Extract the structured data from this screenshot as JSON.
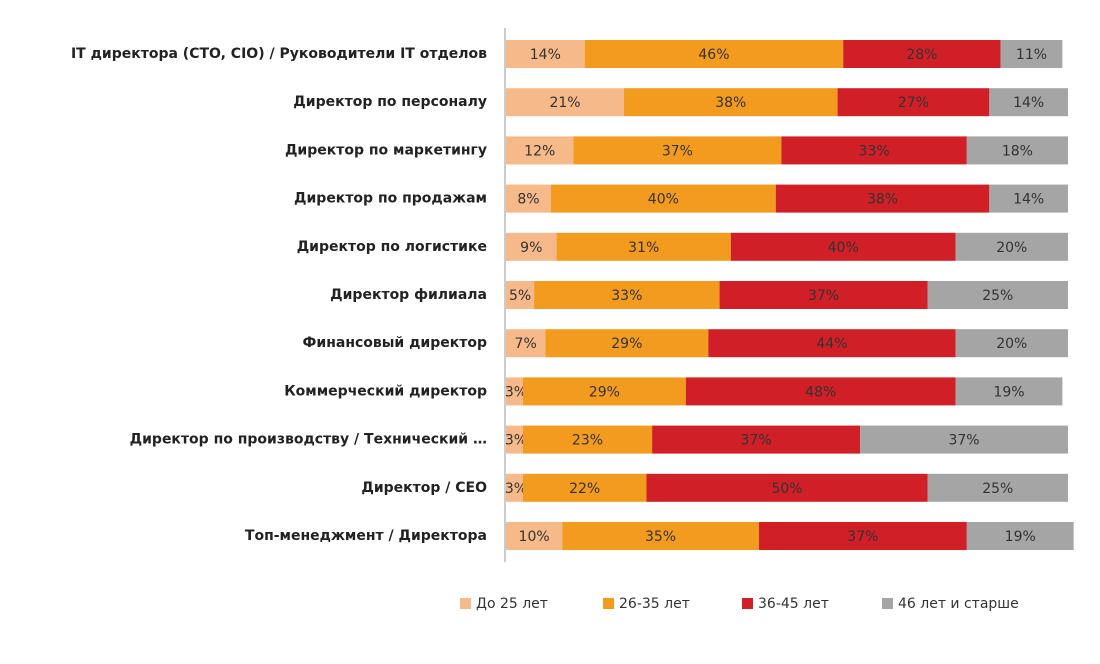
{
  "chart_data": {
    "type": "stacked-bar-horizontal",
    "categories": [
      "IT директора (CTO, CIO) / Руководители IT отделов",
      "Директор по персоналу",
      "Директор по маркетингу",
      "Директор по продажам",
      "Директор по логистике",
      "Директор филиала",
      "Финансовый  директор",
      "Коммерческий  директор",
      "Директор по производству / Технический …",
      "Директор / CEO",
      "Топ-менеджмент / Директора"
    ],
    "xlim": [
      0,
      100
    ],
    "series": [
      {
        "name": "До 25 лет",
        "color": "#f6b98a",
        "values": [
          14,
          21,
          12,
          8,
          9,
          5,
          7,
          3,
          3,
          3,
          10
        ],
        "value_labels": [
          "14%",
          "21%",
          "12%",
          "8%",
          "9%",
          "5%",
          "7%",
          "3%",
          "3%",
          "3%",
          "10%"
        ]
      },
      {
        "name": "26-35 лет",
        "color": "#f39b1e",
        "values": [
          46,
          38,
          37,
          40,
          31,
          33,
          29,
          29,
          23,
          22,
          35
        ],
        "value_labels": [
          "46%",
          "38%",
          "37%",
          "40%",
          "31%",
          "33%",
          "29%",
          "29%",
          "23%",
          "22%",
          "35%"
        ]
      },
      {
        "name": "36-45 лет",
        "color": "#d11f27",
        "values": [
          28,
          27,
          33,
          38,
          40,
          37,
          44,
          48,
          37,
          50,
          37
        ],
        "value_labels": [
          "28%",
          "27%",
          "33%",
          "38%",
          "40%",
          "37%",
          "44%",
          "48%",
          "37%",
          "50%",
          "37%"
        ]
      },
      {
        "name": "46 лет и старше",
        "color": "#a5a5a5",
        "values": [
          11,
          14,
          18,
          14,
          20,
          25,
          20,
          19,
          37,
          25,
          19
        ],
        "value_labels": [
          "11%",
          "14%",
          "18%",
          "14%",
          "20%",
          "25%",
          "20%",
          "19%",
          "37%",
          "25%",
          "19%"
        ]
      }
    ]
  }
}
